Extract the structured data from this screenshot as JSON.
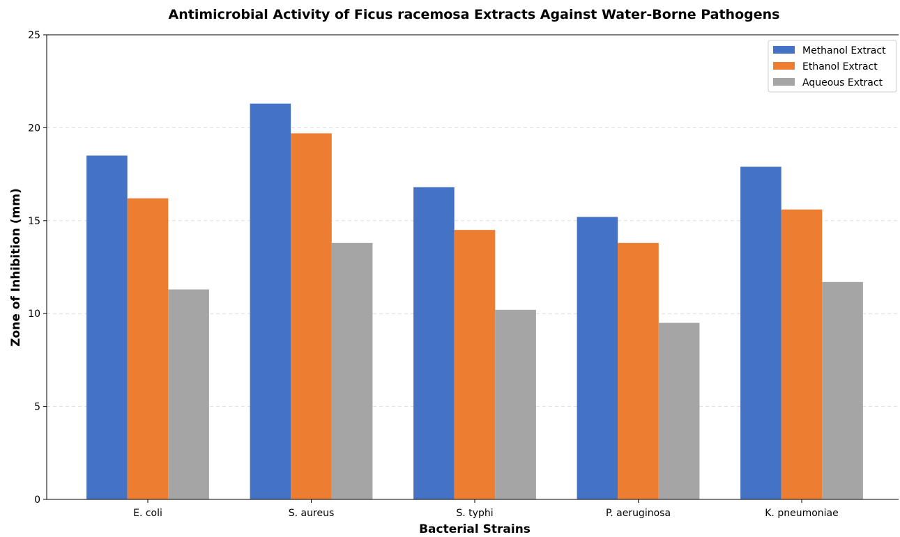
{
  "chart_data": {
    "type": "bar",
    "title": "Antimicrobial Activity of Ficus racemosa Extracts Against Water-Borne Pathogens",
    "xlabel": "Bacterial Strains",
    "ylabel": "Zone of Inhibition (mm)",
    "categories": [
      "E. coli",
      "S. aureus",
      "S. typhi",
      "P. aeruginosa",
      "K. pneumoniae"
    ],
    "series": [
      {
        "name": "Methanol Extract",
        "color": "#4472c4",
        "values": [
          18.5,
          21.3,
          16.8,
          15.2,
          17.9
        ]
      },
      {
        "name": "Ethanol Extract",
        "color": "#ed7d31",
        "values": [
          16.2,
          19.7,
          14.5,
          13.8,
          15.6
        ]
      },
      {
        "name": "Aqueous Extract",
        "color": "#a5a5a5",
        "values": [
          11.3,
          13.8,
          10.2,
          9.5,
          11.7
        ]
      }
    ],
    "ylim": [
      0,
      25
    ],
    "yticks": [
      0,
      5,
      10,
      15,
      20,
      25
    ],
    "grid": "horizontal-dashed",
    "legend": "top-right"
  }
}
